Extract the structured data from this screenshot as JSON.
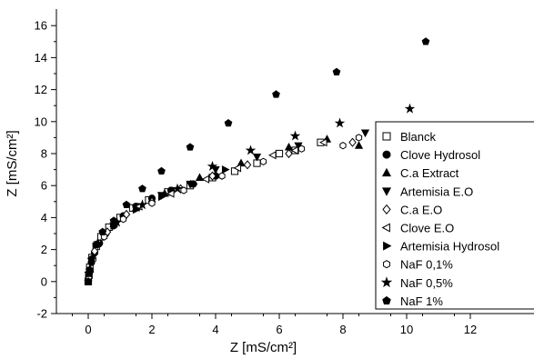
{
  "chart_data": {
    "type": "scatter",
    "xlabel": "Z [mS/cm²]",
    "ylabel": "Z [mS/cm²]",
    "xlim": [
      -1,
      12
    ],
    "ylim": [
      -2,
      17
    ],
    "x_ticks": [
      0,
      2,
      4,
      6,
      8,
      10,
      12
    ],
    "y_ticks": [
      -2,
      0,
      2,
      4,
      6,
      8,
      10,
      12,
      14,
      16
    ],
    "grid": false,
    "legend_position": "right",
    "series": [
      {
        "name": "Blanck",
        "marker": "square-open",
        "points": [
          [
            0,
            0
          ],
          [
            0.02,
            0.4
          ],
          [
            0.05,
            0.9
          ],
          [
            0.12,
            1.5
          ],
          [
            0.25,
            2.2
          ],
          [
            0.4,
            2.8
          ],
          [
            0.65,
            3.4
          ],
          [
            1.0,
            4.0
          ],
          [
            1.4,
            4.6
          ],
          [
            1.9,
            5.1
          ],
          [
            2.5,
            5.6
          ],
          [
            3.2,
            6.0
          ],
          [
            3.9,
            6.5
          ],
          [
            4.6,
            6.9
          ],
          [
            5.3,
            7.4
          ],
          [
            6.0,
            8.0
          ],
          [
            6.5,
            8.2
          ],
          [
            7.3,
            8.7
          ]
        ]
      },
      {
        "name": "Clove Hydrosol",
        "marker": "circle-filled",
        "points": [
          [
            0,
            0
          ],
          [
            0.02,
            0.3
          ],
          [
            0.05,
            0.7
          ],
          [
            0.1,
            1.2
          ],
          [
            0.2,
            1.8
          ],
          [
            0.35,
            2.4
          ],
          [
            0.55,
            3.0
          ],
          [
            0.8,
            3.5
          ],
          [
            1.1,
            4.1
          ],
          [
            1.5,
            4.7
          ],
          [
            2.0,
            5.2
          ],
          [
            2.6,
            5.7
          ],
          [
            3.3,
            6.1
          ],
          [
            4.0,
            6.6
          ]
        ]
      },
      {
        "name": "C.a Extract",
        "marker": "triangle-up-filled",
        "points": [
          [
            0.05,
            0.8
          ],
          [
            0.3,
            2.4
          ],
          [
            0.8,
            3.6
          ],
          [
            1.5,
            4.6
          ],
          [
            2.4,
            5.5
          ],
          [
            3.5,
            6.5
          ],
          [
            4.8,
            7.4
          ],
          [
            6.3,
            8.4
          ],
          [
            7.5,
            8.9
          ],
          [
            8.5,
            8.5
          ]
        ]
      },
      {
        "name": "Artemisia E.O",
        "marker": "triangle-down-filled",
        "points": [
          [
            0.04,
            0.6
          ],
          [
            0.3,
            2.3
          ],
          [
            0.8,
            3.5
          ],
          [
            1.5,
            4.6
          ],
          [
            2.3,
            5.4
          ],
          [
            3.2,
            6.1
          ],
          [
            4.0,
            7.0
          ],
          [
            5.3,
            7.8
          ],
          [
            6.6,
            8.5
          ],
          [
            8.7,
            9.3
          ]
        ]
      },
      {
        "name": "C.a E.O",
        "marker": "diamond-open",
        "points": [
          [
            0.03,
            0.5
          ],
          [
            0.2,
            1.9
          ],
          [
            0.6,
            3.1
          ],
          [
            1.2,
            4.2
          ],
          [
            2.0,
            5.0
          ],
          [
            2.9,
            5.8
          ],
          [
            3.9,
            6.6
          ],
          [
            5.0,
            7.3
          ],
          [
            6.3,
            8.0
          ],
          [
            8.3,
            8.7
          ]
        ]
      },
      {
        "name": "Clove E.O",
        "marker": "triangle-left-open",
        "points": [
          [
            0.03,
            0.6
          ],
          [
            0.3,
            2.4
          ],
          [
            0.8,
            3.6
          ],
          [
            1.6,
            4.7
          ],
          [
            2.6,
            5.5
          ],
          [
            3.7,
            6.4
          ],
          [
            4.7,
            7.1
          ],
          [
            5.8,
            7.9
          ],
          [
            6.5,
            8.2
          ],
          [
            7.4,
            8.7
          ]
        ]
      },
      {
        "name": "Artemisia Hydrosol",
        "marker": "triangle-right-filled",
        "points": [
          [
            0.04,
            0.7
          ],
          [
            0.3,
            2.3
          ],
          [
            0.8,
            3.5
          ],
          [
            1.5,
            4.5
          ],
          [
            2.3,
            5.3
          ],
          [
            3.3,
            6.1
          ],
          [
            4.3,
            7.0
          ]
        ]
      },
      {
        "name": "NaF 0,1%",
        "marker": "hexagon-open",
        "points": [
          [
            0.02,
            0.3
          ],
          [
            0.15,
            1.4
          ],
          [
            0.5,
            2.8
          ],
          [
            1.1,
            3.9
          ],
          [
            2.0,
            4.9
          ],
          [
            3.0,
            5.7
          ],
          [
            4.2,
            6.6
          ],
          [
            5.5,
            7.5
          ],
          [
            6.7,
            8.3
          ],
          [
            8.0,
            8.5
          ],
          [
            8.5,
            9.0
          ]
        ]
      },
      {
        "name": "NaF 0,5%",
        "marker": "star-filled",
        "points": [
          [
            0.03,
            0.5
          ],
          [
            0.3,
            2.4
          ],
          [
            0.9,
            3.7
          ],
          [
            1.7,
            4.8
          ],
          [
            2.8,
            5.8
          ],
          [
            3.9,
            7.2
          ],
          [
            5.1,
            8.2
          ],
          [
            6.5,
            9.1
          ],
          [
            7.9,
            9.9
          ],
          [
            10.1,
            10.8
          ]
        ]
      },
      {
        "name": "NaF 1%",
        "marker": "pentagon-filled",
        "points": [
          [
            0,
            0
          ],
          [
            0.02,
            0.5
          ],
          [
            0.1,
            1.4
          ],
          [
            0.25,
            2.3
          ],
          [
            0.45,
            3.1
          ],
          [
            0.8,
            3.8
          ],
          [
            1.2,
            4.8
          ],
          [
            1.7,
            5.8
          ],
          [
            2.3,
            6.9
          ],
          [
            3.2,
            8.4
          ],
          [
            4.4,
            9.9
          ],
          [
            5.9,
            11.7
          ],
          [
            7.8,
            13.1
          ],
          [
            10.6,
            15.0
          ]
        ]
      }
    ]
  }
}
